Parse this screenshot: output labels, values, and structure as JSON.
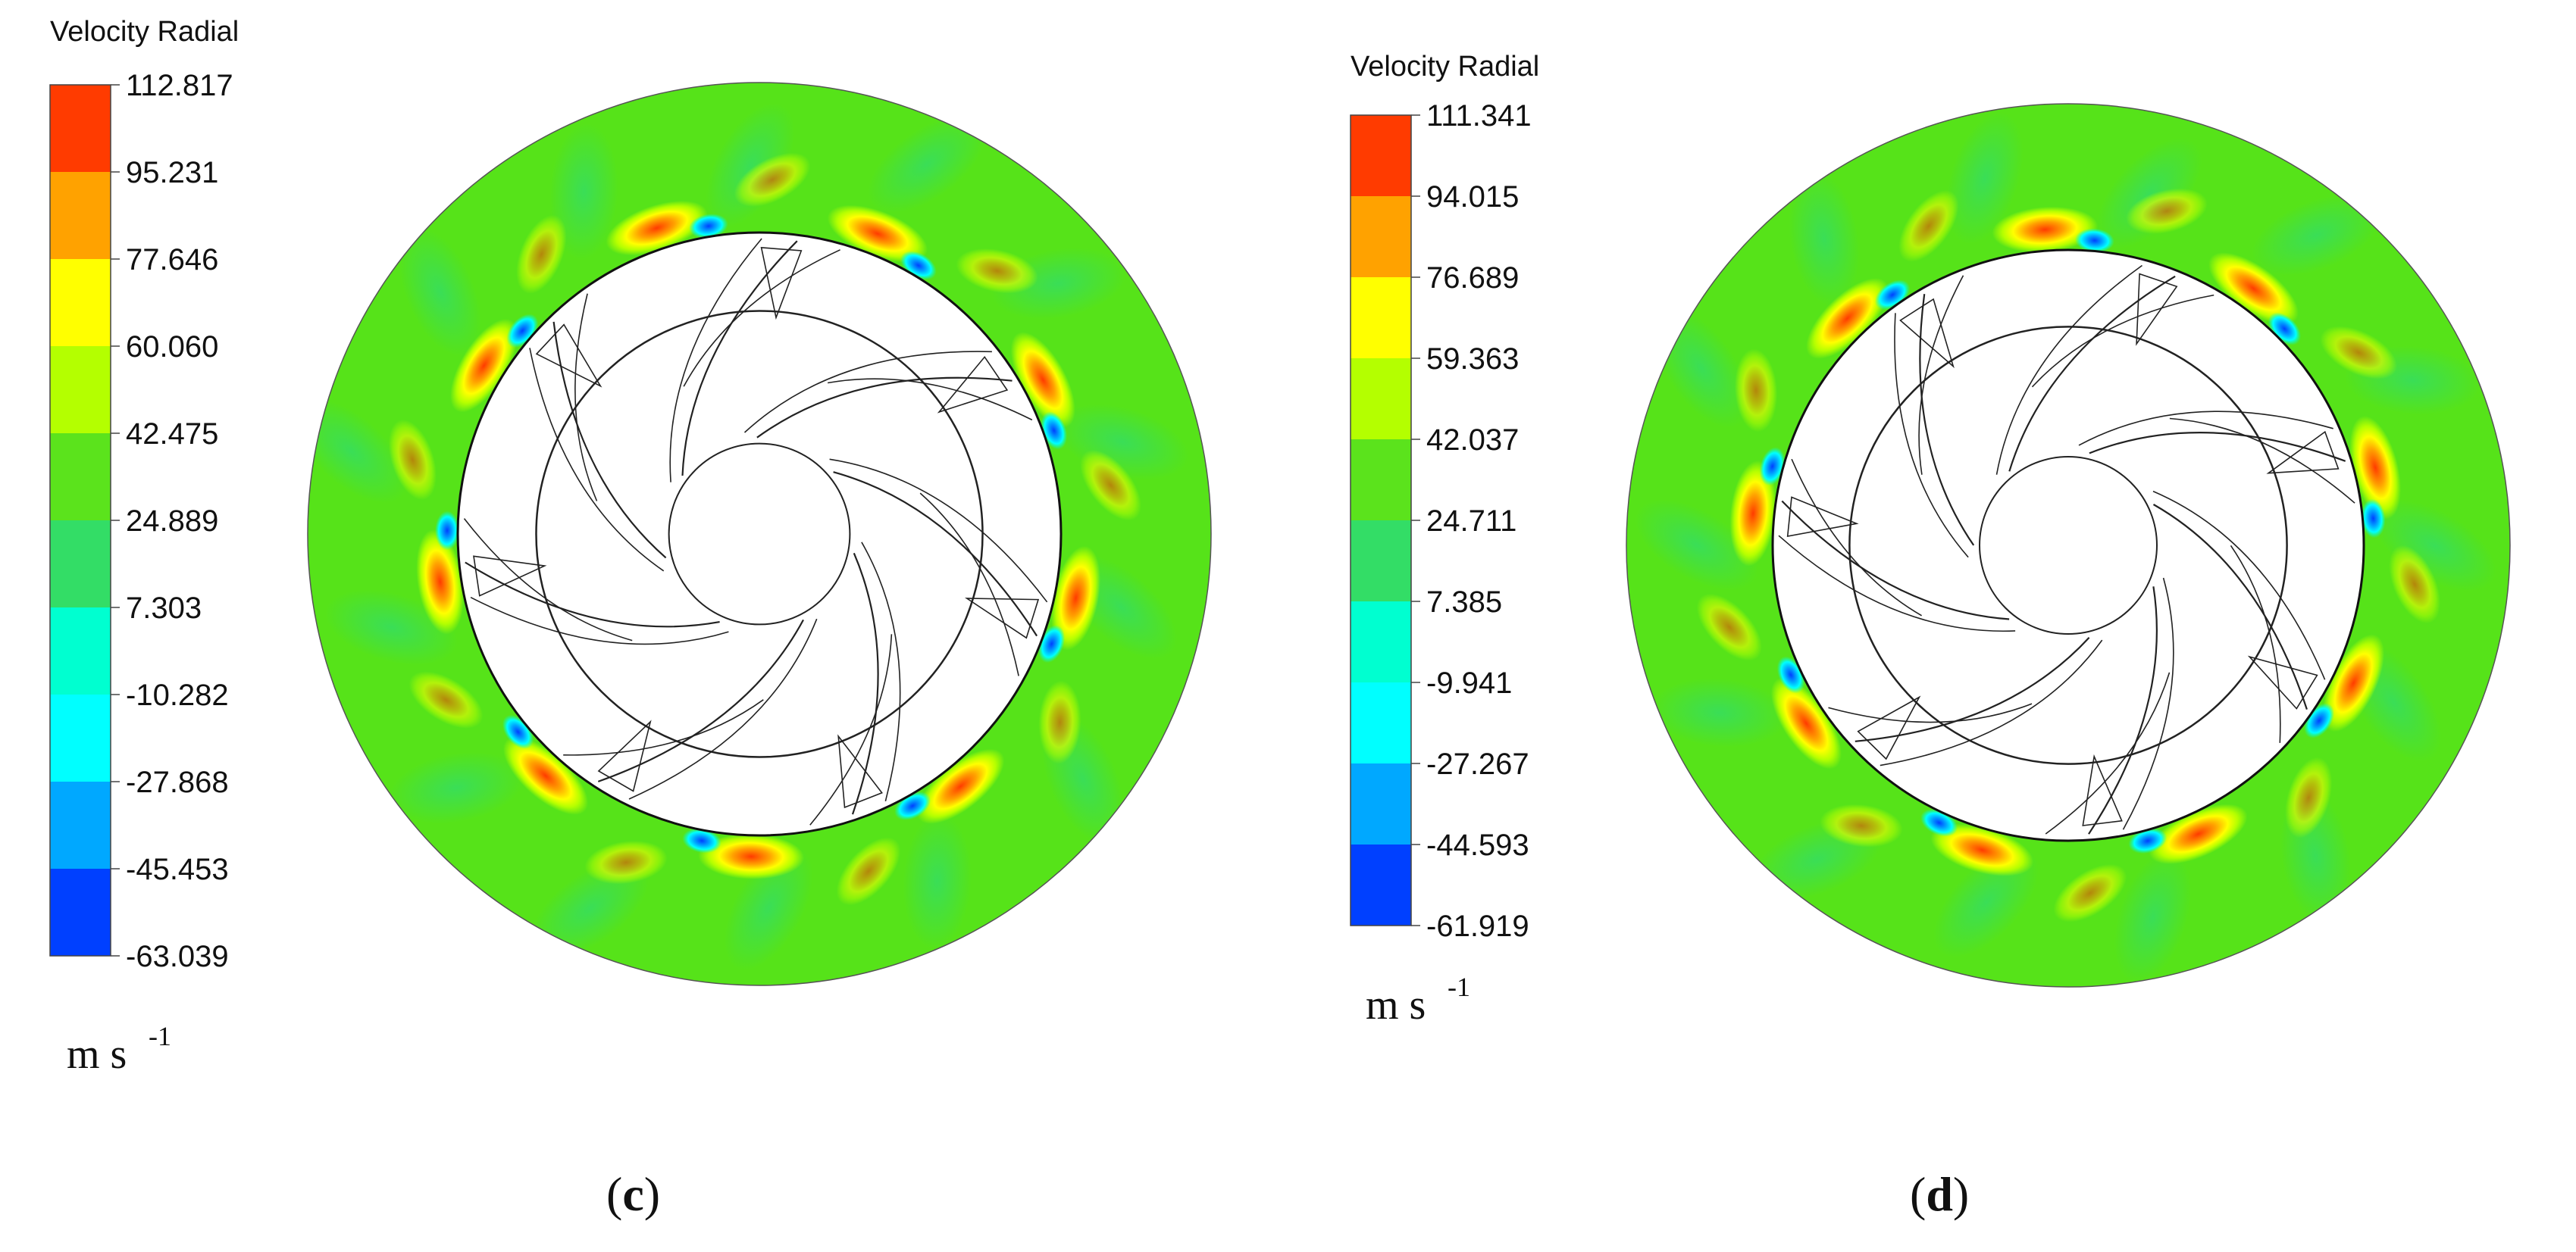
{
  "panels": [
    {
      "id": "c",
      "label": "c",
      "legend": {
        "title": "Velocity Radial",
        "ticks": [
          "112.817",
          "95.231",
          "77.646",
          "60.060",
          "42.475",
          "24.889",
          "7.303",
          "-10.282",
          "-27.868",
          "-45.453",
          "-63.039"
        ],
        "unit": "m s",
        "unit_exponent": "-1"
      }
    },
    {
      "id": "d",
      "label": "d",
      "legend": {
        "title": "Velocity Radial",
        "ticks": [
          "111.341",
          "94.015",
          "76.689",
          "59.363",
          "42.037",
          "24.711",
          "7.385",
          "-9.941",
          "-27.267",
          "-44.593",
          "-61.919"
        ],
        "unit": "m s",
        "unit_exponent": "-1"
      }
    }
  ],
  "colors": {
    "scale_top_to_bottom": [
      "#ff3b00",
      "#ffa200",
      "#ffff00",
      "#b4ff00",
      "#5be31c",
      "#33dd66",
      "#00ffd0",
      "#00ffff",
      "#00a8ff",
      "#0040ff"
    ],
    "field_background": "#56e319",
    "blade_stroke": "#222222"
  }
}
